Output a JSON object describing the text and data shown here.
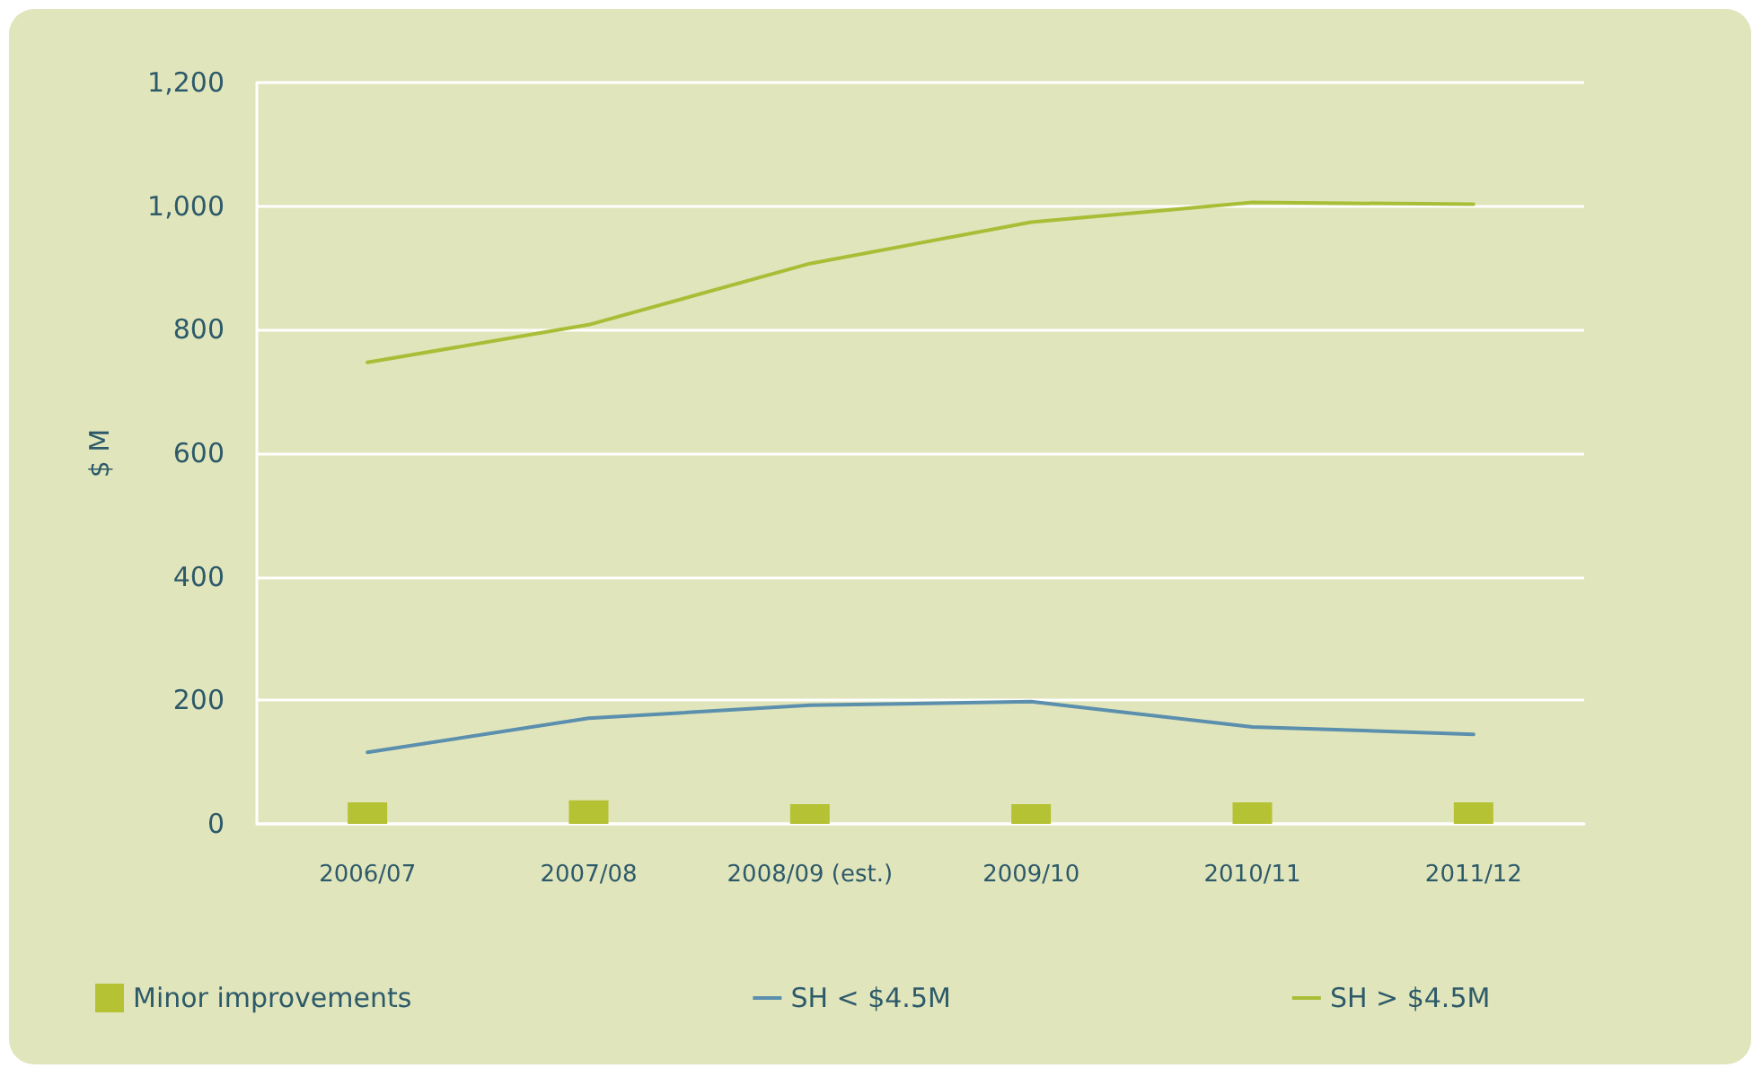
{
  "chart_data": {
    "type": "line",
    "ylabel": "$ M",
    "categories": [
      "2006/07",
      "2007/08",
      "2008/09 (est.)",
      "2009/10",
      "2010/11",
      "2011/12"
    ],
    "series": [
      {
        "name": "Minor improvements",
        "type": "bar",
        "color": "#b5c234",
        "values": [
          35,
          38,
          32,
          32,
          35,
          35
        ]
      },
      {
        "name": "SH < $4.5M",
        "color": "#5b8fae",
        "values": [
          116,
          171,
          192,
          198,
          157,
          145
        ]
      },
      {
        "name": "SH > $4.5M",
        "color": "#a8be36",
        "values": [
          747,
          808,
          907,
          974,
          1006,
          1003
        ]
      }
    ],
    "ylim": [
      0,
      1200
    ],
    "yticks": [
      0,
      200,
      400,
      600,
      800,
      {
        "value": 1000,
        "label": "1,000"
      },
      {
        "value": 1200,
        "label": "1,200"
      }
    ],
    "grid": "y",
    "legend": "bottom",
    "marker": "none",
    "line_style": "solid"
  }
}
